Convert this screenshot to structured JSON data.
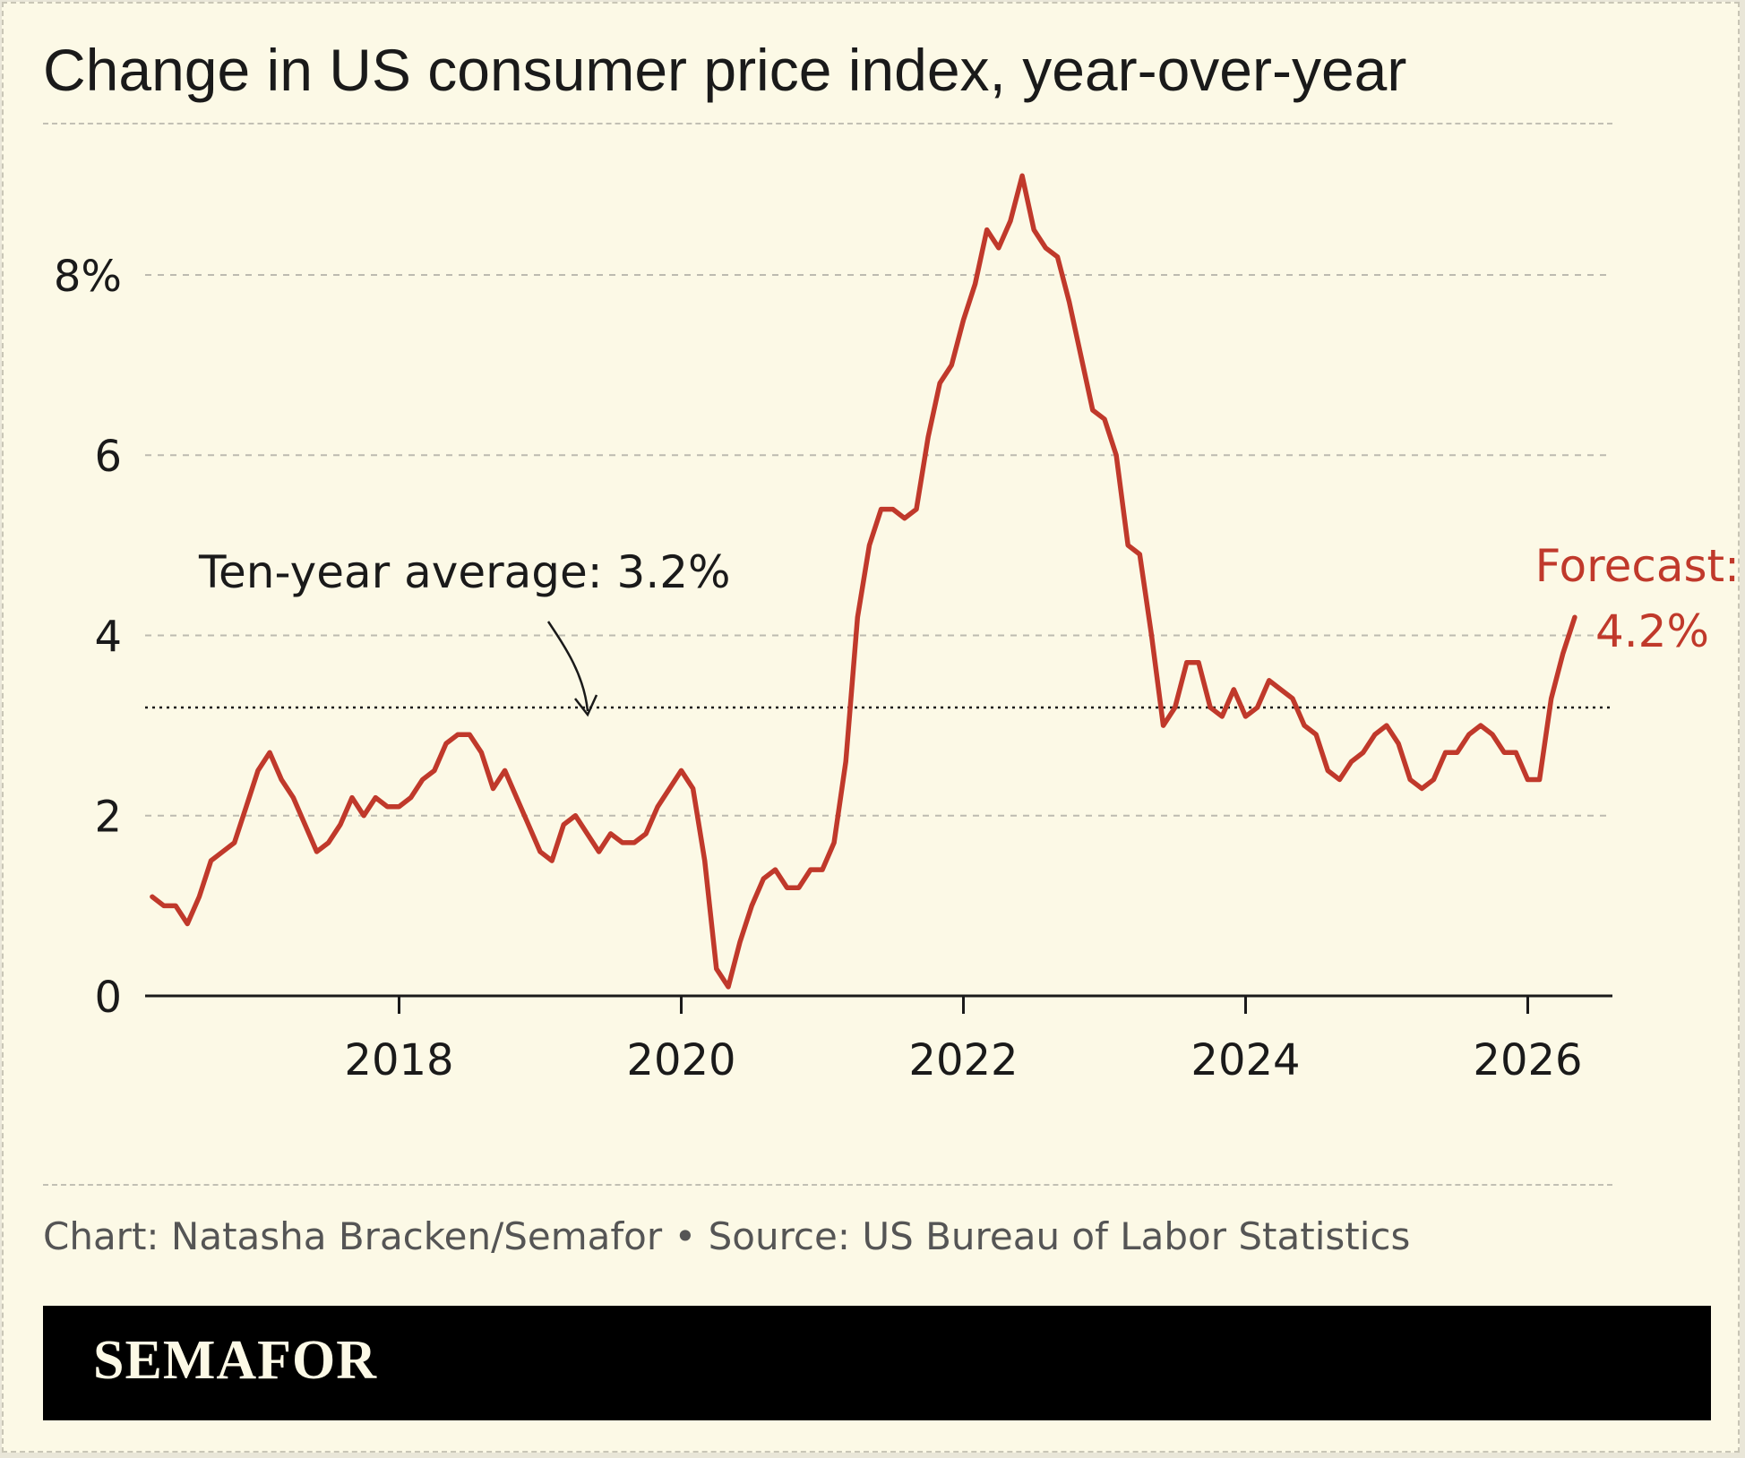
{
  "title": "Change in US consumer price index, year-over-year",
  "credit": "Chart: Natasha Bracken/Semafor • Source: US Bureau of Labor Statistics",
  "brand": "SEMAFOR",
  "colors": {
    "background": "#fcf9e6",
    "series": "#c0392b",
    "text": "#1a1a1a",
    "credit": "#555555",
    "brand_bar": "#000000"
  },
  "chart_data": {
    "type": "line",
    "title": "Change in US consumer price index, year-over-year",
    "xlabel": "",
    "ylabel": "",
    "xlim": [
      2016.2,
      2026.6
    ],
    "ylim": [
      0,
      9.5
    ],
    "y_ticks": [
      0,
      2,
      4,
      6,
      8
    ],
    "y_tick_labels": [
      "0",
      "2",
      "4",
      "6",
      "8%"
    ],
    "x_ticks": [
      2018,
      2020,
      2022,
      2024,
      2026
    ],
    "x_tick_labels": [
      "2018",
      "2020",
      "2022",
      "2024",
      "2026"
    ],
    "grid": true,
    "legend": "none",
    "reference_line": {
      "value": 3.2,
      "label": "Ten-year average: 3.2%"
    },
    "end_annotation": {
      "line1": "Forecast:",
      "line2": "4.2%"
    },
    "series": [
      {
        "x_start": 2016.25,
        "x_step": 0.08333,
        "values": [
          1.1,
          1.0,
          1.0,
          0.8,
          1.1,
          1.5,
          1.6,
          1.7,
          2.1,
          2.5,
          2.7,
          2.4,
          2.2,
          1.9,
          1.6,
          1.7,
          1.9,
          2.2,
          2.0,
          2.2,
          2.1,
          2.1,
          2.2,
          2.4,
          2.5,
          2.8,
          2.9,
          2.9,
          2.7,
          2.3,
          2.5,
          2.2,
          1.9,
          1.6,
          1.5,
          1.9,
          2.0,
          1.8,
          1.6,
          1.8,
          1.7,
          1.7,
          1.8,
          2.1,
          2.3,
          2.5,
          2.3,
          1.5,
          0.3,
          0.1,
          0.6,
          1.0,
          1.3,
          1.4,
          1.2,
          1.2,
          1.4,
          1.4,
          1.7,
          2.6,
          4.2,
          5.0,
          5.4,
          5.4,
          5.3,
          5.4,
          6.2,
          6.8,
          7.0,
          7.5,
          7.9,
          8.5,
          8.3,
          8.6,
          9.1,
          8.5,
          8.3,
          8.2,
          7.7,
          7.1,
          6.5,
          6.4,
          6.0,
          5.0,
          4.9,
          4.0,
          3.0,
          3.2,
          3.7,
          3.7,
          3.2,
          3.1,
          3.4,
          3.1,
          3.2,
          3.5,
          3.4,
          3.3,
          3.0,
          2.9,
          2.5,
          2.4,
          2.6,
          2.7,
          2.9,
          3.0,
          2.8,
          2.4,
          2.3,
          2.4,
          2.7,
          2.7,
          2.9,
          3.0,
          2.9,
          2.7,
          2.7,
          2.4,
          2.4,
          3.3,
          3.8,
          4.2
        ]
      }
    ]
  }
}
